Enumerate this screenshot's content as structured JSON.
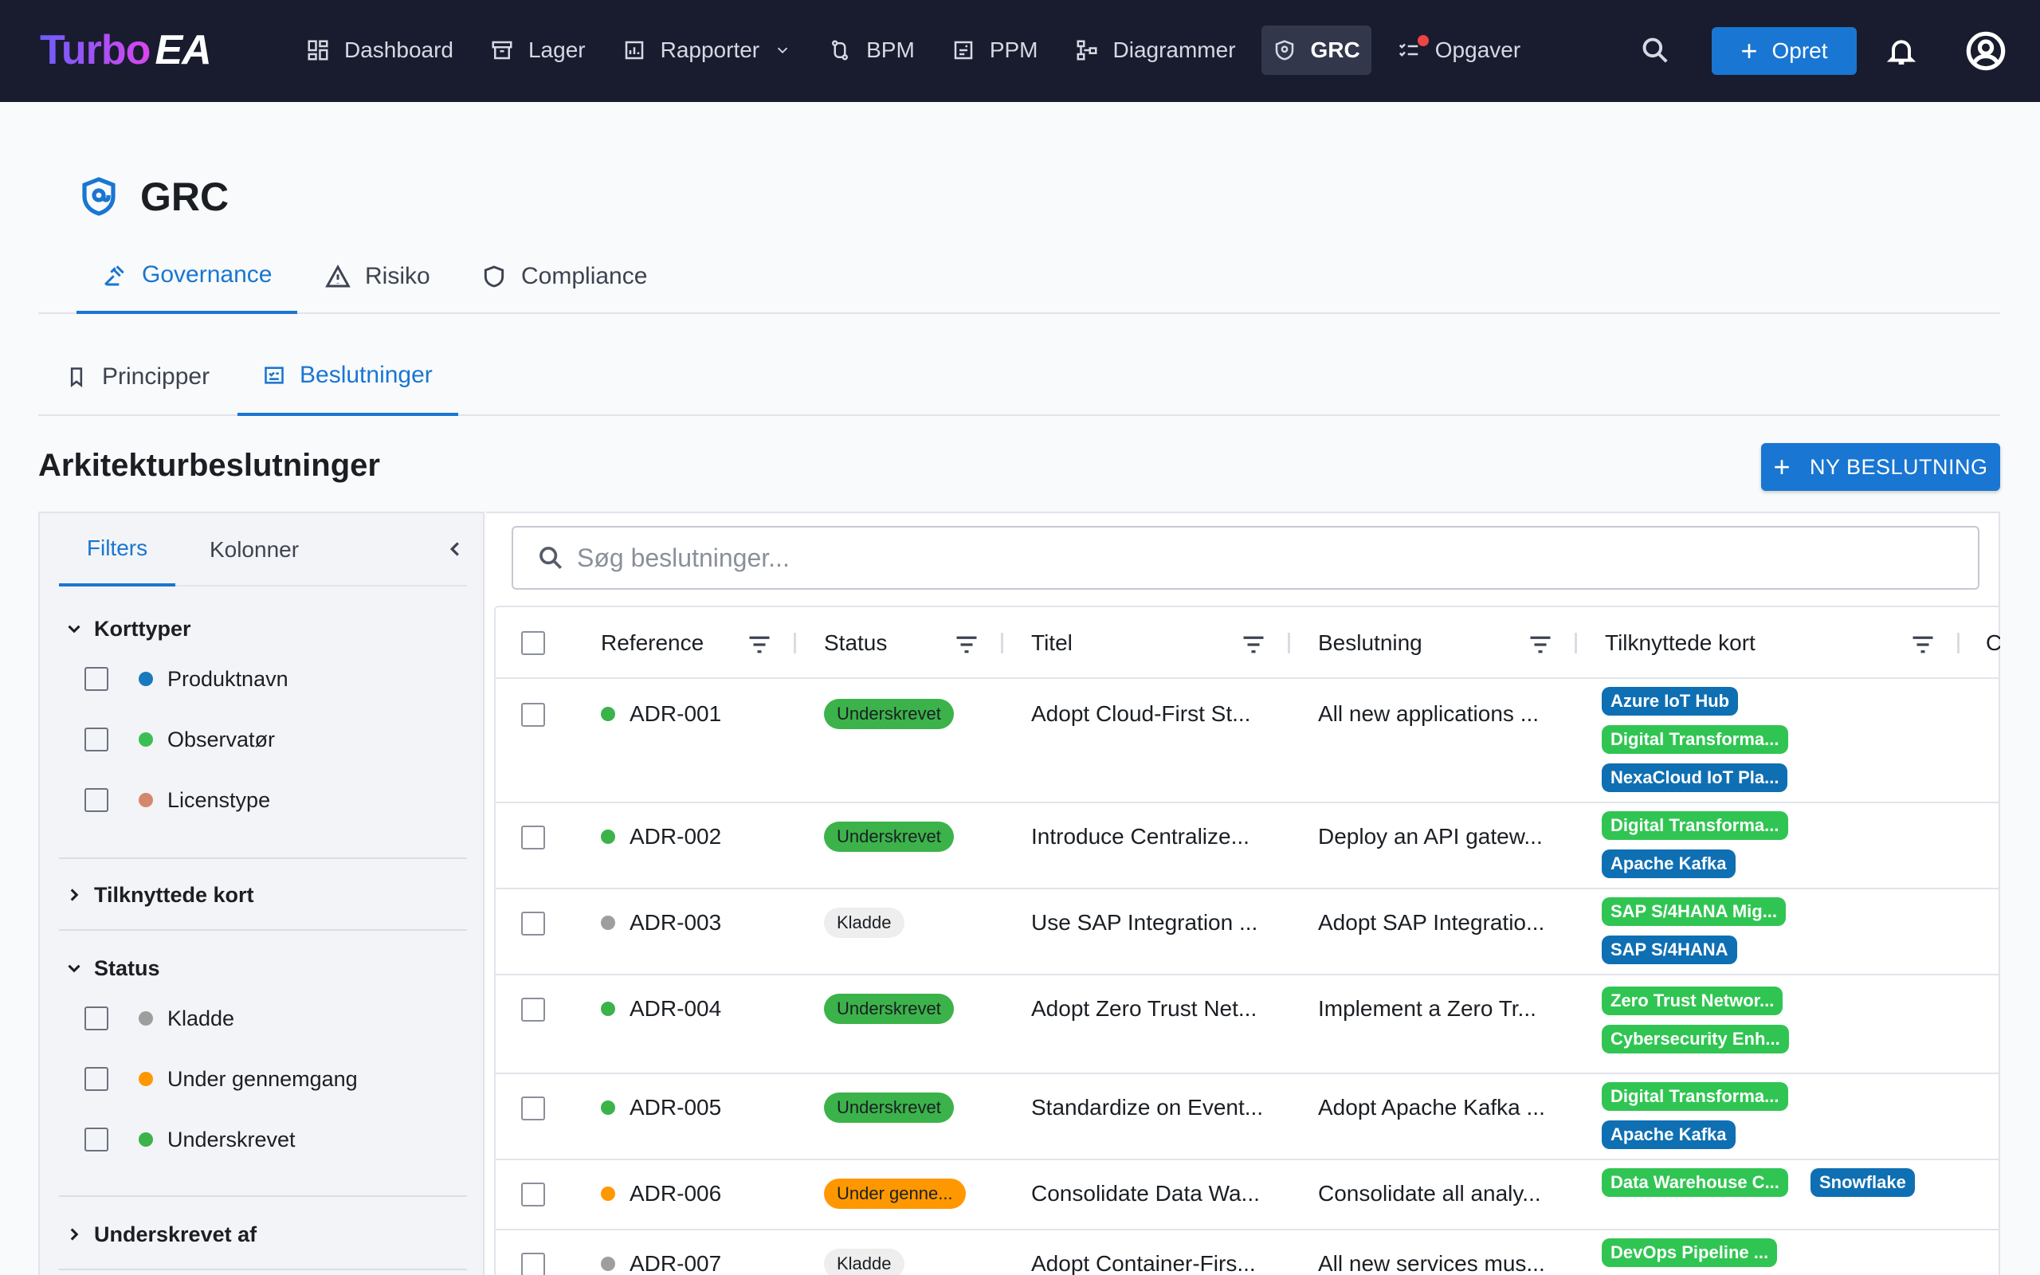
{
  "app": {
    "logo_turbo": "Turbo",
    "logo_ea": "EA"
  },
  "nav": {
    "items": [
      {
        "label": "Dashboard",
        "icon": "dashboard-icon"
      },
      {
        "label": "Lager",
        "icon": "archive-icon"
      },
      {
        "label": "Rapporter",
        "icon": "report-icon"
      },
      {
        "label": "BPM",
        "icon": "bpm-icon"
      },
      {
        "label": "PPM",
        "icon": "ppm-icon"
      },
      {
        "label": "Diagrammer",
        "icon": "diagram-icon"
      },
      {
        "label": "GRC",
        "icon": "shield-icon"
      },
      {
        "label": "Opgaver",
        "icon": "tasks-icon"
      }
    ],
    "create_label": "Opret"
  },
  "page": {
    "title": "GRC",
    "tabs": [
      {
        "label": "Governance"
      },
      {
        "label": "Risiko"
      },
      {
        "label": "Compliance"
      }
    ],
    "subtabs": [
      {
        "label": "Principper"
      },
      {
        "label": "Beslutninger"
      }
    ],
    "section_title": "Arkitekturbeslutninger",
    "new_button": "NY BESLUTNING"
  },
  "sidebar": {
    "tabs": [
      "Filters",
      "Kolonner"
    ],
    "groups": {
      "card_types": {
        "title": "Korttyper",
        "options": [
          {
            "label": "Produktnavn",
            "color": "#1779be"
          },
          {
            "label": "Observatør",
            "color": "#3bbf55"
          },
          {
            "label": "Licenstype",
            "color": "#d4876b"
          }
        ]
      },
      "linked": {
        "title": "Tilknyttede kort"
      },
      "status": {
        "title": "Status",
        "options": [
          {
            "label": "Kladde",
            "color": "#9e9e9e"
          },
          {
            "label": "Under gennemgang",
            "color": "#ff9800"
          },
          {
            "label": "Underskrevet",
            "color": "#3bb34a"
          }
        ]
      },
      "signed_by": {
        "title": "Underskrevet af"
      }
    }
  },
  "search": {
    "placeholder": "Søg beslutninger..."
  },
  "table": {
    "columns": [
      "Reference",
      "Status",
      "Titel",
      "Beslutning",
      "Tilknyttede kort",
      "C"
    ],
    "rows": [
      {
        "ref": "ADR-001",
        "dot": "#3bb34a",
        "status": "Underskrevet",
        "title": "Adopt Cloud-First St...",
        "decision": "All new applications ...",
        "chips": [
          {
            "label": "Azure IoT Hub",
            "color": "#0f6fb3"
          },
          {
            "label": "Digital Transforma...",
            "color": "#30c552"
          },
          {
            "label": "NexaCloud IoT Pla...",
            "color": "#0f6fb3"
          }
        ]
      },
      {
        "ref": "ADR-002",
        "dot": "#3bb34a",
        "status": "Underskrevet",
        "title": "Introduce Centralize...",
        "decision": "Deploy an API gatew...",
        "chips": [
          {
            "label": "Digital Transforma...",
            "color": "#30c552"
          },
          {
            "label": "Apache Kafka",
            "color": "#0f6fb3"
          }
        ]
      },
      {
        "ref": "ADR-003",
        "dot": "#9e9e9e",
        "status": "Kladde",
        "title": "Use SAP Integration ...",
        "decision": "Adopt SAP Integratio...",
        "chips": [
          {
            "label": "SAP S/4HANA Mig...",
            "color": "#30c552"
          },
          {
            "label": "SAP S/4HANA",
            "color": "#0f6fb3"
          }
        ]
      },
      {
        "ref": "ADR-004",
        "dot": "#3bb34a",
        "status": "Underskrevet",
        "title": "Adopt Zero Trust Net...",
        "decision": "Implement a Zero Tr...",
        "chips": [
          {
            "label": "Zero Trust Networ...",
            "color": "#30c552"
          },
          {
            "label": "Cybersecurity Enh...",
            "color": "#30c552"
          }
        ]
      },
      {
        "ref": "ADR-005",
        "dot": "#3bb34a",
        "status": "Underskrevet",
        "title": "Standardize on Event...",
        "decision": "Adopt Apache Kafka ...",
        "chips": [
          {
            "label": "Digital Transforma...",
            "color": "#30c552"
          },
          {
            "label": "Apache Kafka",
            "color": "#0f6fb3"
          }
        ]
      },
      {
        "ref": "ADR-006",
        "dot": "#ff9800",
        "status": "Under genne...",
        "title": "Consolidate Data Wa...",
        "decision": "Consolidate all analy...",
        "chips": [
          {
            "label": "Data Warehouse C...",
            "color": "#30c552"
          },
          {
            "label": "Snowflake",
            "color": "#0f6fb3"
          }
        ]
      },
      {
        "ref": "ADR-007",
        "dot": "#9e9e9e",
        "status": "Kladde",
        "title": "Adopt Container-Firs...",
        "decision": "All new services mus...",
        "chips": [
          {
            "label": "DevOps Pipeline ...",
            "color": "#30c552"
          }
        ]
      }
    ]
  },
  "colors": {
    "accent": "#1976d2",
    "nav_bg": "#191c2e",
    "status_signed_bg": "#3bb34a",
    "status_review_bg": "#ff9800",
    "status_draft_bg": "#eeeeee"
  }
}
